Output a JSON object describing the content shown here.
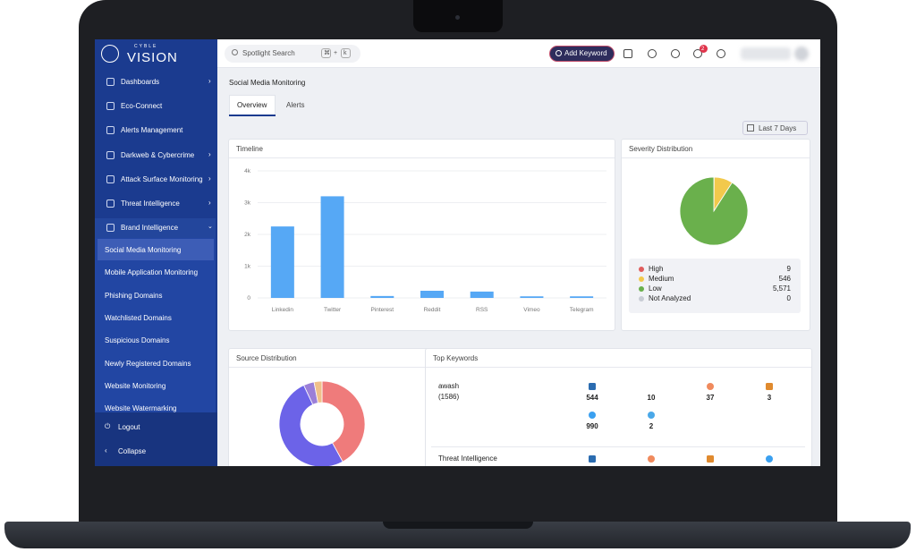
{
  "sidebar": {
    "brand_top": "CYBLE",
    "brand": "VISION",
    "menu": [
      "Dashboards",
      "Eco-Connect",
      "Alerts Management",
      "Darkweb & Cybercrime",
      "Attack Surface Monitoring",
      "Threat Intelligence",
      "Brand Intelligence"
    ],
    "submenu": [
      "Social Media Monitoring",
      "Mobile Application Monitoring",
      "Phishing Domains",
      "Watchlisted Domains",
      "Suspicious Domains",
      "Newly Registered Domains",
      "Website Monitoring",
      "Website Watermarking"
    ],
    "footer": [
      "Logout",
      "Collapse"
    ]
  },
  "topbar": {
    "search": "Spotlight Search",
    "shortcut": [
      "⌘",
      "+",
      "k"
    ],
    "add_keyword": "Add Keyword",
    "notifications": 2
  },
  "page": {
    "title": "Social Media Monitoring",
    "tabs": [
      "Overview",
      "Alerts"
    ],
    "range": "Last 7 Days"
  },
  "timeline": {
    "type": "bar",
    "title": "Timeline",
    "categories": [
      "Linkedin",
      "Twitter",
      "Pinterest",
      "Reddit",
      "RSS",
      "Vimeo",
      "Telegram"
    ],
    "values": [
      2250,
      3200,
      60,
      225,
      200,
      50,
      50
    ],
    "color": "#56a8f5",
    "ylim": [
      0,
      4000
    ],
    "yticks": [
      0,
      {
        "value": 1000,
        "label": "1k"
      },
      {
        "value": 2000,
        "label": "2k"
      },
      {
        "value": 3000,
        "label": "3k"
      },
      {
        "value": 4000,
        "label": "4k"
      }
    ],
    "grid": true
  },
  "severity": {
    "type": "pie",
    "title": "Severity Distribution",
    "categories": [
      "High",
      "Medium",
      "Low",
      "Not Analyzed"
    ],
    "values": [
      9,
      546,
      5571,
      0
    ],
    "value_labels": [
      "9",
      "546",
      "5,571",
      "0"
    ],
    "colors": [
      "#e05d5d",
      "#f2c94c",
      "#6ab04c",
      "#c8ccd4"
    ]
  },
  "source": {
    "type": "donut",
    "title": "Source Distribution",
    "values": [
      42,
      51,
      4,
      3
    ],
    "colors": [
      "#ef7b7b",
      "#6c63e8",
      "#9b7fd8",
      "#f0c08a"
    ]
  },
  "keywords": {
    "title": "Top Keywords",
    "rows": [
      {
        "name": "awash",
        "count": "(1586)",
        "stats": [
          544,
          10,
          37,
          3,
          990,
          2
        ]
      },
      {
        "name": "Threat Intelligence"
      }
    ]
  }
}
